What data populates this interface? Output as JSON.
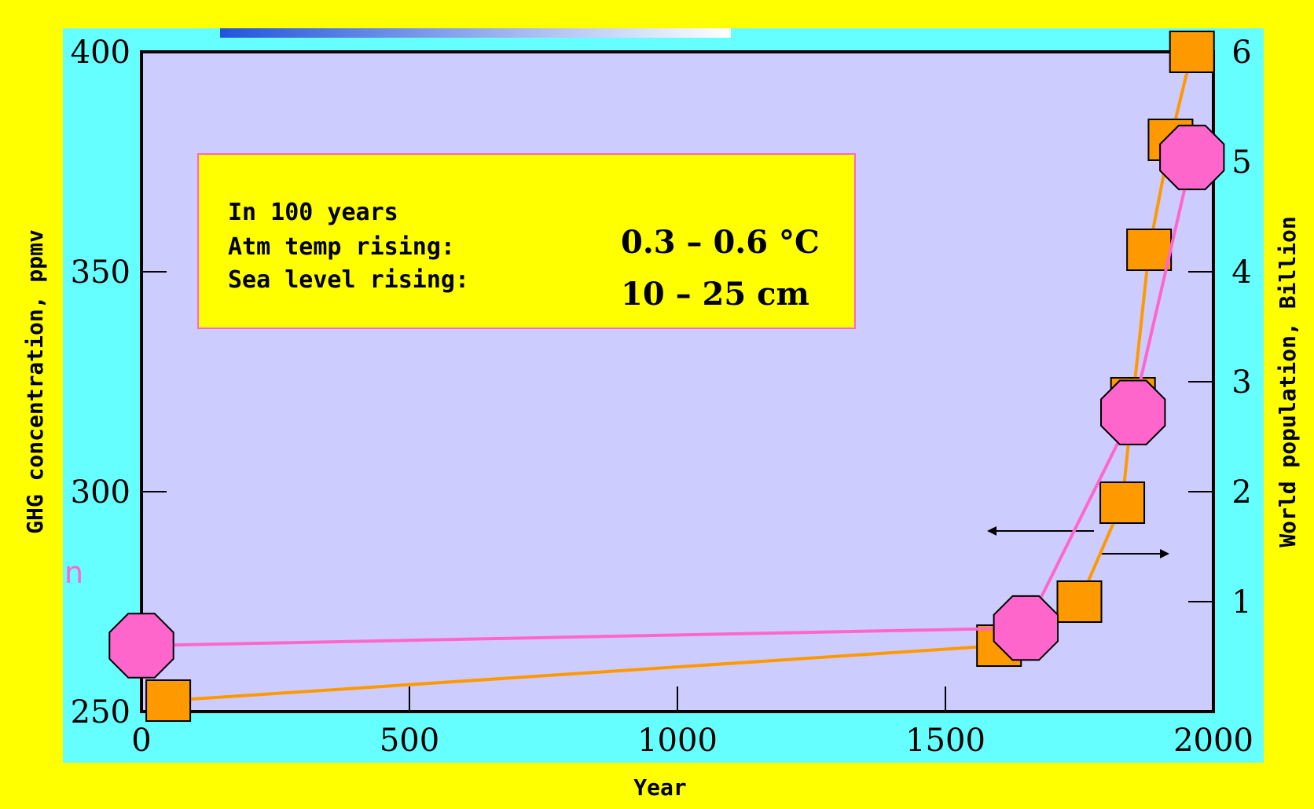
{
  "colors": {
    "page_background": "#ffff00",
    "panel_background": "#66ffff",
    "plot_background": "#ccccff",
    "ghg_series": "#ff66cc",
    "population_series": "#ff9900",
    "annotation_box": "#ffff00"
  },
  "annotation": {
    "line1": "In 100 years",
    "line2": "Atm temp rising:",
    "line3": "Sea level rising:",
    "temp_value": "0.3 – 0.6 °C",
    "sea_value": "10 – 25 cm"
  },
  "partial_label": "n",
  "chart_data": {
    "type": "line",
    "title": "",
    "xlabel": "Year",
    "ylabel": "GHG concentration, ppmv",
    "y2label": "World population, Billion",
    "xlim": [
      0,
      2000
    ],
    "ylim": [
      250,
      400
    ],
    "y2lim": [
      0,
      6
    ],
    "x_ticks": [
      "0",
      "500",
      "1000",
      "1500",
      "2000"
    ],
    "y_ticks": [
      "250",
      "300",
      "350",
      "400"
    ],
    "y2_ticks": [
      "1",
      "2",
      "3",
      "4",
      "5",
      "6"
    ],
    "grid": false,
    "series": [
      {
        "axis": "left",
        "marker": "octagon",
        "color": "#ff66cc",
        "x": [
          0,
          1650,
          1850,
          1960
        ],
        "y": [
          265,
          269,
          318,
          376
        ]
      },
      {
        "axis": "right",
        "marker": "square",
        "color": "#ff9900",
        "x": [
          50,
          1600,
          1750,
          1830,
          1850,
          1880,
          1920,
          1960
        ],
        "y": [
          0.1,
          0.6,
          1.0,
          1.9,
          2.85,
          4.2,
          5.2,
          6.0
        ]
      }
    ]
  }
}
